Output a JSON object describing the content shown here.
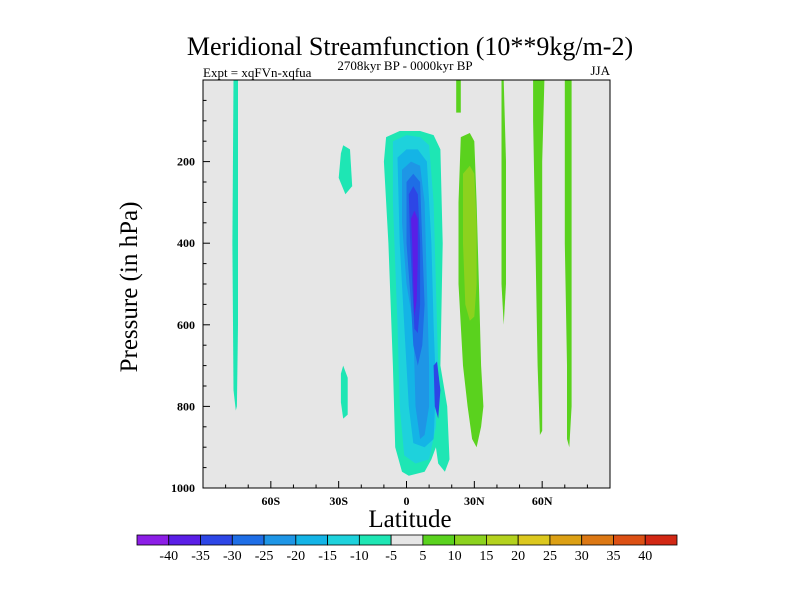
{
  "chart_data": {
    "type": "filled-contour",
    "title": "Meridional Streamfunction (10**9kg/m-2)",
    "left_string": "Expt = xqFVn-xqfua",
    "center_string": "2708kyr BP - 0000kyr BP",
    "right_string": "JJA",
    "xlabel": "Latitude",
    "ylabel": "Pressure (in hPa)",
    "xlim": [
      -90,
      90
    ],
    "ylim": [
      1000,
      0
    ],
    "x_ticks": [
      {
        "value": -60,
        "label": "60S"
      },
      {
        "value": -30,
        "label": "30S"
      },
      {
        "value": 0,
        "label": "0"
      },
      {
        "value": 30,
        "label": "30N"
      },
      {
        "value": 60,
        "label": "60N"
      }
    ],
    "y_ticks": [
      {
        "value": 200,
        "label": "200"
      },
      {
        "value": 400,
        "label": "400"
      },
      {
        "value": 600,
        "label": "600"
      },
      {
        "value": 800,
        "label": "800"
      },
      {
        "value": 1000,
        "label": "1000"
      }
    ],
    "background_color": "#e6e6e6",
    "levels": [
      -40,
      -35,
      -30,
      -25,
      -20,
      -15,
      -10,
      -5,
      5,
      10,
      15,
      20,
      25,
      30,
      35,
      40
    ],
    "colors": [
      "#8c1ee6",
      "#5a1ee6",
      "#2d46e6",
      "#1e6ee6",
      "#1e96e6",
      "#14b4e6",
      "#1ed2dc",
      "#1ee6b4",
      "#e6e6e6",
      "#5ad21e",
      "#8cd21e",
      "#b4d21e",
      "#dcc81e",
      "#dca014",
      "#dc7814",
      "#dc5014",
      "#d22814"
    ],
    "regions": [
      {
        "name": "sh-high-lat-column",
        "level": "-10 to -5",
        "color_index": 7,
        "polygon": [
          [
            -76.5,
            0
          ],
          [
            -74.5,
            0
          ],
          [
            -74.5,
            600
          ],
          [
            -75,
            800
          ],
          [
            -75.5,
            810
          ],
          [
            -76.5,
            760
          ],
          [
            -77,
            400
          ]
        ]
      },
      {
        "name": "sh-upper-cell",
        "level": "-10 to -5",
        "color_index": 7,
        "polygon": [
          [
            -28,
            160
          ],
          [
            -25,
            170
          ],
          [
            -24,
            260
          ],
          [
            -27,
            280
          ],
          [
            -30,
            240
          ],
          [
            -29,
            180
          ]
        ]
      },
      {
        "name": "sh-lower-cell",
        "level": "-10 to -5",
        "color_index": 7,
        "polygon": [
          [
            -28,
            700
          ],
          [
            -26,
            730
          ],
          [
            -26,
            820
          ],
          [
            -28,
            830
          ],
          [
            -29,
            790
          ],
          [
            -29,
            720
          ]
        ]
      },
      {
        "name": "tropical-cell-outer",
        "level": "-10 to -5",
        "color_index": 7,
        "polygon": [
          [
            -9,
            140
          ],
          [
            -3,
            125
          ],
          [
            6,
            125
          ],
          [
            12,
            135
          ],
          [
            15,
            170
          ],
          [
            16,
            400
          ],
          [
            15,
            700
          ],
          [
            18,
            800
          ],
          [
            19,
            930
          ],
          [
            17,
            960
          ],
          [
            14,
            940
          ],
          [
            13,
            900
          ],
          [
            11,
            930
          ],
          [
            8,
            960
          ],
          [
            1,
            970
          ],
          [
            -2,
            960
          ],
          [
            -5,
            900
          ],
          [
            -6,
            700
          ],
          [
            -8,
            400
          ],
          [
            -10,
            200
          ]
        ]
      },
      {
        "name": "tropical-cell-level2",
        "level": "-15 to -10",
        "color_index": 6,
        "polygon": [
          [
            -6,
            150
          ],
          [
            0,
            135
          ],
          [
            6,
            140
          ],
          [
            10,
            160
          ],
          [
            12,
            300
          ],
          [
            13,
            500
          ],
          [
            14,
            700
          ],
          [
            13,
            850
          ],
          [
            10,
            930
          ],
          [
            4,
            940
          ],
          [
            -1,
            920
          ],
          [
            -3,
            800
          ],
          [
            -4,
            600
          ],
          [
            -6,
            300
          ]
        ]
      },
      {
        "name": "tropical-cell-level3",
        "level": "-20 to -15",
        "color_index": 5,
        "polygon": [
          [
            -4,
            190
          ],
          [
            0,
            170
          ],
          [
            5,
            170
          ],
          [
            9,
            200
          ],
          [
            11,
            400
          ],
          [
            12,
            600
          ],
          [
            13,
            750
          ],
          [
            12,
            880
          ],
          [
            8,
            900
          ],
          [
            3,
            890
          ],
          [
            1,
            800
          ],
          [
            -1,
            600
          ],
          [
            -3,
            400
          ]
        ]
      },
      {
        "name": "tropical-cell-level4",
        "level": "-25 to -20",
        "color_index": 4,
        "polygon": [
          [
            -2,
            220
          ],
          [
            2,
            200
          ],
          [
            6,
            210
          ],
          [
            8,
            300
          ],
          [
            9,
            500
          ],
          [
            10,
            700
          ],
          [
            10,
            800
          ],
          [
            8,
            870
          ],
          [
            6,
            880
          ],
          [
            4,
            800
          ],
          [
            3,
            600
          ],
          [
            0,
            500
          ],
          [
            -2,
            350
          ]
        ]
      },
      {
        "name": "tropical-cell-level5",
        "level": "-30 to -25",
        "color_index": 3,
        "polygon": [
          [
            0,
            250
          ],
          [
            3,
            230
          ],
          [
            6,
            250
          ],
          [
            7,
            400
          ],
          [
            8,
            550
          ],
          [
            7,
            650
          ],
          [
            5,
            700
          ],
          [
            3,
            650
          ],
          [
            2,
            550
          ],
          [
            0,
            400
          ]
        ]
      },
      {
        "name": "tropical-cell-level6",
        "level": "-35 to -30",
        "color_index": 2,
        "polygon": [
          [
            1,
            280
          ],
          [
            3,
            260
          ],
          [
            5,
            280
          ],
          [
            6,
            400
          ],
          [
            6,
            550
          ],
          [
            5,
            620
          ],
          [
            3.5,
            610
          ],
          [
            2.5,
            500
          ],
          [
            1.5,
            380
          ]
        ]
      },
      {
        "name": "tropical-cell-core",
        "level": "-40 to -35",
        "color_index": 1,
        "polygon": [
          [
            2,
            340
          ],
          [
            3.5,
            320
          ],
          [
            5,
            340
          ],
          [
            5,
            440
          ],
          [
            4.5,
            540
          ],
          [
            3.5,
            580
          ],
          [
            3,
            500
          ],
          [
            2.5,
            400
          ]
        ]
      },
      {
        "name": "tropical-cell-nh-lower-lobe",
        "level": "-35 to -30",
        "color_index": 2,
        "polygon": [
          [
            12,
            700
          ],
          [
            13.5,
            690
          ],
          [
            15,
            760
          ],
          [
            14,
            830
          ],
          [
            12.5,
            800
          ]
        ]
      },
      {
        "name": "nh-tropical-cell-outer",
        "level": "5 to 10",
        "color_index": 9,
        "polygon": [
          [
            24,
            140
          ],
          [
            28,
            130
          ],
          [
            30,
            150
          ],
          [
            31,
            300
          ],
          [
            32,
            500
          ],
          [
            33,
            700
          ],
          [
            34,
            800
          ],
          [
            33,
            850
          ],
          [
            31,
            900
          ],
          [
            29,
            880
          ],
          [
            27,
            800
          ],
          [
            25,
            700
          ],
          [
            23,
            500
          ],
          [
            23,
            300
          ]
        ]
      },
      {
        "name": "nh-tropical-cell-inner",
        "level": "10 to 15",
        "color_index": 10,
        "polygon": [
          [
            25,
            230
          ],
          [
            28,
            210
          ],
          [
            30,
            230
          ],
          [
            31,
            350
          ],
          [
            31,
            500
          ],
          [
            30,
            580
          ],
          [
            28,
            590
          ],
          [
            26,
            550
          ],
          [
            25,
            400
          ]
        ]
      },
      {
        "name": "nh-upper-column-a",
        "level": "5 to 10",
        "color_index": 9,
        "polygon": [
          [
            22,
            0
          ],
          [
            24,
            0
          ],
          [
            24,
            80
          ],
          [
            22,
            80
          ]
        ]
      },
      {
        "name": "nh-mid-column",
        "level": "5 to 10",
        "color_index": 9,
        "polygon": [
          [
            42,
            0
          ],
          [
            43,
            0
          ],
          [
            44,
            200
          ],
          [
            44,
            500
          ],
          [
            43,
            600
          ],
          [
            42,
            500
          ],
          [
            42,
            200
          ]
        ]
      },
      {
        "name": "nh-column-b",
        "level": "5 to 10",
        "color_index": 9,
        "polygon": [
          [
            56,
            0
          ],
          [
            61,
            0
          ],
          [
            60,
            200
          ],
          [
            60,
            600
          ],
          [
            60,
            860
          ],
          [
            59,
            870
          ],
          [
            58,
            700
          ],
          [
            57,
            400
          ],
          [
            56,
            100
          ]
        ]
      },
      {
        "name": "nh-column-c",
        "level": "5 to 10",
        "color_index": 9,
        "polygon": [
          [
            70,
            0
          ],
          [
            73,
            0
          ],
          [
            73,
            200
          ],
          [
            73,
            500
          ],
          [
            73,
            800
          ],
          [
            72,
            900
          ],
          [
            71,
            880
          ],
          [
            71,
            700
          ],
          [
            70,
            400
          ],
          [
            70,
            100
          ]
        ]
      }
    ]
  }
}
